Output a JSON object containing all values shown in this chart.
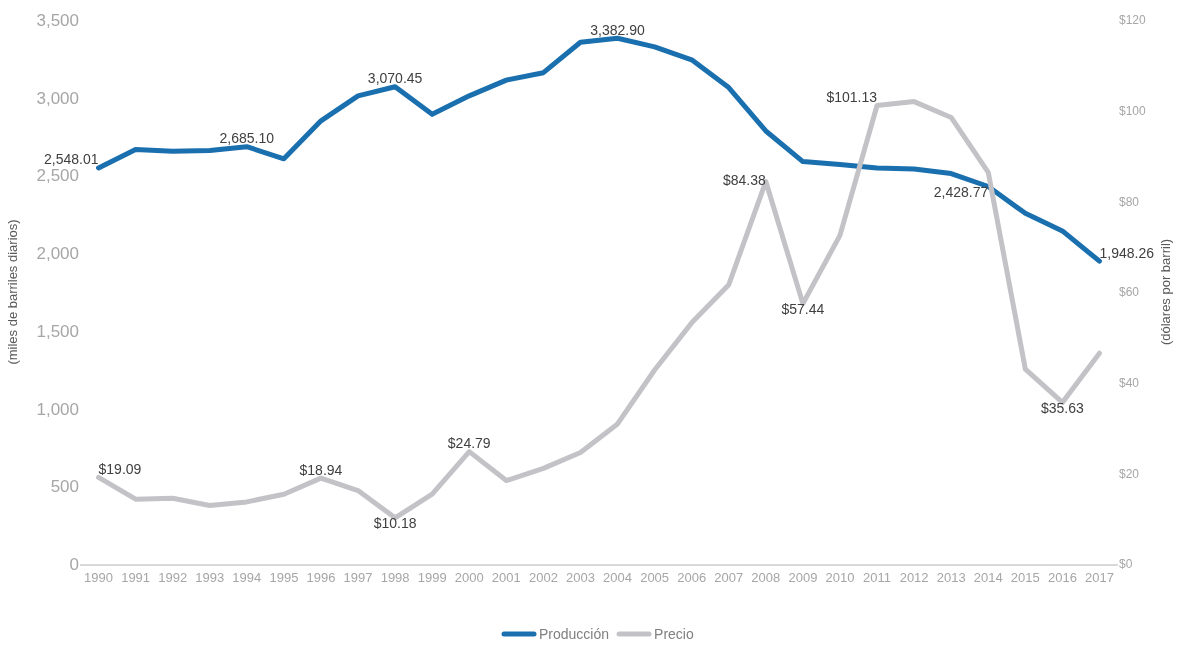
{
  "chart_data": {
    "type": "line",
    "categories": [
      "1990",
      "1991",
      "1992",
      "1993",
      "1994",
      "1995",
      "1996",
      "1997",
      "1998",
      "1999",
      "2000",
      "2001",
      "2002",
      "2003",
      "2004",
      "2005",
      "2006",
      "2007",
      "2008",
      "2009",
      "2010",
      "2011",
      "2012",
      "2013",
      "2014",
      "2015",
      "2016",
      "2017"
    ],
    "ylabel": "(miles de barriles diarios)",
    "y2label": "(dólares por barril)",
    "ylim": [
      0,
      3500
    ],
    "yticks": [
      {
        "value": 0,
        "label": "0"
      },
      {
        "value": 500,
        "label": "500"
      },
      {
        "value": 1000,
        "label": "1,000"
      },
      {
        "value": 1500,
        "label": "1,500"
      },
      {
        "value": 2000,
        "label": "2,000"
      },
      {
        "value": 2500,
        "label": "2,500"
      },
      {
        "value": 3000,
        "label": "3,000"
      },
      {
        "value": 3500,
        "label": "3,500"
      }
    ],
    "y2lim": [
      0,
      120
    ],
    "y2ticks": [
      {
        "value": 0,
        "label": "$0"
      },
      {
        "value": 20,
        "label": "$20"
      },
      {
        "value": 40,
        "label": "$40"
      },
      {
        "value": 60,
        "label": "$60"
      },
      {
        "value": 80,
        "label": "$80"
      },
      {
        "value": 100,
        "label": "$100"
      },
      {
        "value": 120,
        "label": "$120"
      }
    ],
    "series": [
      {
        "name": "Producción",
        "color": "#1a6faf",
        "values": [
          2548.01,
          2667,
          2655,
          2660,
          2685.1,
          2607,
          2851,
          3012,
          3070.45,
          2893,
          3012,
          3113,
          3161,
          3357,
          3382.9,
          3327,
          3244,
          3065,
          2786,
          2589,
          2571,
          2548,
          2542,
          2512,
          2428.77,
          2256,
          2143,
          1948.26
        ],
        "value_labels": [
          "2,548.01",
          null,
          null,
          null,
          "2,685.10",
          null,
          null,
          null,
          "3,070.45",
          null,
          null,
          null,
          null,
          null,
          "3,382.90",
          null,
          null,
          null,
          null,
          null,
          null,
          null,
          null,
          null,
          "2,428.77",
          null,
          null,
          "1,948.26"
        ]
      },
      {
        "name": "Precio",
        "color": "#c3c3c7",
        "axis": "y2",
        "values": [
          19.09,
          14.3,
          14.5,
          12.9,
          13.7,
          15.4,
          18.94,
          16.2,
          10.18,
          15.4,
          24.79,
          18.4,
          21.1,
          24.6,
          30.9,
          42.8,
          53.2,
          61.6,
          84.38,
          57.44,
          72.5,
          101.13,
          102,
          98.5,
          86.4,
          43,
          35.63,
          46.5
        ],
        "value_labels": [
          "$19.09",
          null,
          null,
          null,
          null,
          null,
          "$18.94",
          null,
          "$10.18",
          null,
          "$24.79",
          null,
          null,
          null,
          null,
          null,
          null,
          null,
          "$84.38",
          "$57.44",
          null,
          "$101.13",
          null,
          null,
          null,
          null,
          "$35.63",
          null
        ]
      }
    ],
    "grid": false,
    "legend": "bottom",
    "marker": "none",
    "line_style": "solid"
  }
}
